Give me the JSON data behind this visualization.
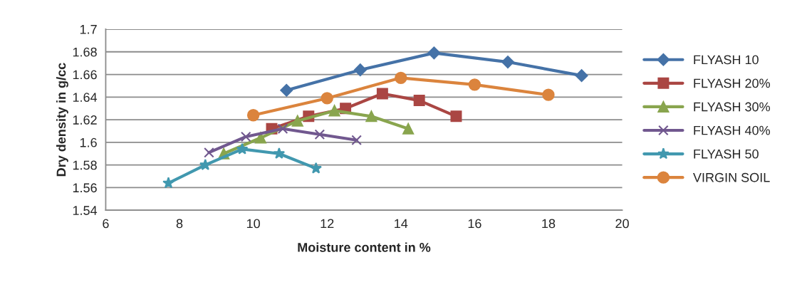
{
  "chart_data": {
    "type": "line",
    "xlabel": "Moisture content in %",
    "ylabel": "Dry density in g/cc",
    "xlim": [
      6,
      20
    ],
    "xticks": [
      6,
      8,
      10,
      12,
      14,
      16,
      18,
      20
    ],
    "ylim": [
      1.54,
      1.7
    ],
    "yticks": [
      1.54,
      1.56,
      1.58,
      1.6,
      1.62,
      1.64,
      1.66,
      1.68,
      1.7
    ],
    "grid": "y",
    "legend": "right",
    "line_style": "solid",
    "series": [
      {
        "name": "FLYASH 10",
        "color": "#4572a7",
        "marker": "diamond",
        "x": [
          10.9,
          12.9,
          14.9,
          16.9,
          18.9
        ],
        "values": [
          1.646,
          1.664,
          1.679,
          1.671,
          1.659
        ]
      },
      {
        "name": "FLYASH 20%",
        "color": "#aa4643",
        "marker": "square",
        "x": [
          10.5,
          11.5,
          12.5,
          13.5,
          14.5,
          15.5
        ],
        "values": [
          1.612,
          1.623,
          1.63,
          1.643,
          1.637,
          1.623
        ]
      },
      {
        "name": "FLYASH 30%",
        "color": "#89a54e",
        "marker": "triangle",
        "x": [
          9.2,
          10.2,
          11.2,
          12.2,
          13.2,
          14.2
        ],
        "values": [
          1.59,
          1.604,
          1.619,
          1.628,
          1.623,
          1.612
        ]
      },
      {
        "name": "FLYASH 40%",
        "color": "#71588f",
        "marker": "cross",
        "x": [
          8.8,
          9.8,
          10.8,
          11.8,
          12.8
        ],
        "values": [
          1.591,
          1.605,
          1.612,
          1.607,
          1.602
        ]
      },
      {
        "name": "FLYASH 50",
        "color": "#4198af",
        "marker": "star",
        "x": [
          7.7,
          8.7,
          9.7,
          10.7,
          11.7
        ],
        "values": [
          1.564,
          1.58,
          1.594,
          1.59,
          1.577
        ]
      },
      {
        "name": "VIRGIN SOIL",
        "color": "#db843d",
        "marker": "circle",
        "x": [
          10,
          12,
          14,
          16,
          18
        ],
        "values": [
          1.624,
          1.639,
          1.657,
          1.651,
          1.642
        ]
      }
    ]
  }
}
